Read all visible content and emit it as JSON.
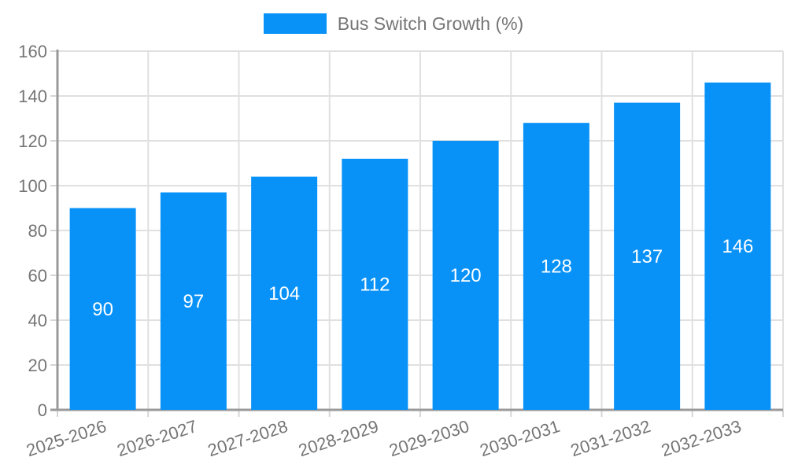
{
  "legend": {
    "label": "Bus Switch Growth (%)"
  },
  "colors": {
    "bar": "#0892f8",
    "bar_label": "#ffffff",
    "grid": "#e0e0e0",
    "tick": "#d6d6d6",
    "axis": "#9a9a9a",
    "text": "#757575",
    "background": "#ffffff"
  },
  "chart_data": {
    "type": "bar",
    "title": "Bus Switch Growth (%)",
    "categories": [
      "2025-2026",
      "2026-2027",
      "2027-2028",
      "2028-2029",
      "2029-2030",
      "2030-2031",
      "2031-2032",
      "2032-2033"
    ],
    "values": [
      90,
      97,
      104,
      112,
      120,
      128,
      137,
      146
    ],
    "xlabel": "",
    "ylabel": "",
    "ylim": [
      0,
      160
    ],
    "ytick_step": 20,
    "yticks": [
      0,
      20,
      40,
      60,
      80,
      100,
      120,
      140,
      160
    ],
    "grid": true,
    "legend_position": "top",
    "bar_value_labels": "inside-center",
    "x_label_rotation_deg": -18
  }
}
